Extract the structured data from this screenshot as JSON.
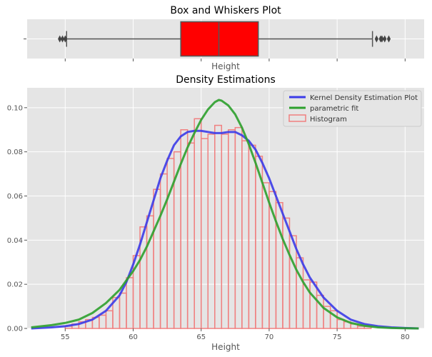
{
  "chart_data": [
    {
      "type": "box",
      "title": "Box and Whiskers Plot",
      "xlabel": "Height",
      "ylabel": "",
      "xlim": [
        52.2,
        81.4
      ],
      "grid": true,
      "box": {
        "whisker_low": 55.1,
        "q1": 63.5,
        "median": 66.3,
        "q3": 69.2,
        "whisker_high": 77.6,
        "color": "#ff0000"
      },
      "outliers": [
        54.6,
        54.8,
        55.0,
        77.9,
        78.2,
        78.3,
        78.5,
        78.8
      ],
      "yticklabels": [
        ""
      ]
    },
    {
      "type": "histogram",
      "title": "Density Estimations",
      "xlabel": "Height",
      "ylabel": "",
      "xlim": [
        52.2,
        81.4
      ],
      "ylim": [
        0,
        0.109
      ],
      "grid": true,
      "legend_position": "top-right",
      "xticks": [
        55,
        60,
        65,
        70,
        75,
        80
      ],
      "yticks": [
        0.0,
        0.02,
        0.04,
        0.06,
        0.08,
        0.1
      ],
      "ytick_labels": [
        "0.00",
        "0.02",
        "0.04",
        "0.06",
        "0.08",
        "0.10"
      ],
      "histogram": {
        "name": "Histogram",
        "color": "#f08080",
        "bin_start": 55,
        "bin_width": 0.5,
        "densities": [
          0.001,
          0.002,
          0.003,
          0.004,
          0.005,
          0.006,
          0.008,
          0.014,
          0.016,
          0.023,
          0.033,
          0.046,
          0.051,
          0.063,
          0.07,
          0.077,
          0.08,
          0.09,
          0.084,
          0.095,
          0.086,
          0.088,
          0.092,
          0.088,
          0.09,
          0.091,
          0.085,
          0.083,
          0.078,
          0.066,
          0.062,
          0.057,
          0.05,
          0.042,
          0.032,
          0.022,
          0.021,
          0.015,
          0.01,
          0.008,
          0.004,
          0.003,
          0.002,
          0.001,
          0.001
        ]
      },
      "series": [
        {
          "name": "Kernel Density Estimation Plot",
          "color": "#3b3be8",
          "x": [
            52.5,
            54,
            55,
            56,
            57,
            58,
            59,
            59.5,
            60,
            60.5,
            61,
            61.5,
            62,
            62.5,
            63,
            63.5,
            64,
            64.5,
            65,
            65.5,
            66,
            66.5,
            67,
            67.5,
            68,
            68.5,
            69,
            69.5,
            70,
            70.5,
            71,
            71.5,
            72,
            72.5,
            73,
            74,
            75,
            76,
            77,
            78,
            79,
            80,
            81
          ],
          "y": [
            0.0,
            0.0005,
            0.001,
            0.002,
            0.004,
            0.008,
            0.015,
            0.021,
            0.029,
            0.038,
            0.048,
            0.058,
            0.068,
            0.076,
            0.083,
            0.087,
            0.089,
            0.0895,
            0.0895,
            0.089,
            0.0885,
            0.0885,
            0.089,
            0.089,
            0.0875,
            0.085,
            0.081,
            0.075,
            0.068,
            0.06,
            0.052,
            0.044,
            0.036,
            0.029,
            0.023,
            0.014,
            0.008,
            0.004,
            0.002,
            0.001,
            0.0005,
            0.0002,
            0.0
          ]
        },
        {
          "name": "parametric fit",
          "color": "#2ca02c",
          "x": [
            52.5,
            54,
            55,
            56,
            57,
            58,
            59,
            60,
            60.5,
            61,
            61.5,
            62,
            62.5,
            63,
            63.5,
            64,
            64.5,
            65,
            65.5,
            66,
            66.3,
            66.5,
            67,
            67.5,
            68,
            68.5,
            69,
            69.5,
            70,
            70.5,
            71,
            71.5,
            72,
            72.5,
            73,
            74,
            75,
            76,
            77,
            78,
            79,
            80,
            81
          ],
          "y": [
            0.0005,
            0.0015,
            0.0025,
            0.004,
            0.007,
            0.0115,
            0.0175,
            0.026,
            0.031,
            0.037,
            0.044,
            0.051,
            0.0585,
            0.0665,
            0.0745,
            0.082,
            0.0885,
            0.0945,
            0.0992,
            0.1025,
            0.1035,
            0.1032,
            0.101,
            0.097,
            0.091,
            0.0835,
            0.075,
            0.066,
            0.057,
            0.0485,
            0.0405,
            0.0333,
            0.0266,
            0.021,
            0.0162,
            0.0093,
            0.005,
            0.0025,
            0.0012,
            0.0005,
            0.0002,
            0.0001,
            0.0
          ]
        }
      ]
    }
  ]
}
